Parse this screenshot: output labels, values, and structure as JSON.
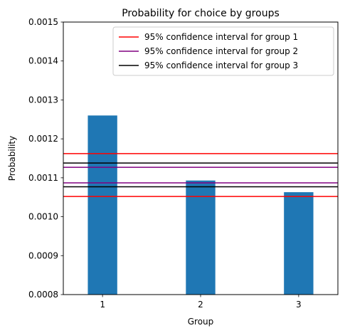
{
  "chart_data": {
    "type": "bar",
    "title": "Probability for choice by groups",
    "xlabel": "Group",
    "ylabel": "Probability",
    "categories": [
      "1",
      "2",
      "3"
    ],
    "values": [
      0.00126,
      0.001093,
      0.001063
    ],
    "bar_color": "#1f77b4",
    "ylim": [
      0.0008,
      0.0015
    ],
    "yticks": [
      "0.0008",
      "0.0009",
      "0.0010",
      "0.0011",
      "0.0012",
      "0.0013",
      "0.0014",
      "0.0015"
    ],
    "ytick_values": [
      0.0008,
      0.0009,
      0.001,
      0.0011,
      0.0012,
      0.0013,
      0.0014,
      0.0015
    ],
    "legend_position": "top-right",
    "reference_lines": [
      {
        "name": "95% confidence interval for group 1",
        "color": "#ff0000",
        "values": [
          0.001162,
          0.001052
        ]
      },
      {
        "name": "95% confidence interval for group 2",
        "color": "#800080",
        "values": [
          0.001127,
          0.001087
        ]
      },
      {
        "name": "95% confidence interval for group 3",
        "color": "#000000",
        "values": [
          0.001138,
          0.001077
        ]
      }
    ]
  }
}
